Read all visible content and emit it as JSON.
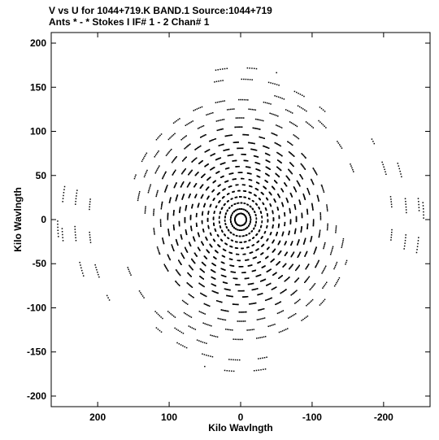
{
  "header": {
    "line1": "V vs U for 1044+719.K BAND.1   Source:1044+719",
    "line2": "Ants * - *     Stokes I  IF# 1 - 2  Chan# 1"
  },
  "chart_data": {
    "type": "scatter",
    "title": "V vs U for 1044+719.K BAND.1   Source:1044+719",
    "subtitle": "Ants * - *     Stokes I  IF# 1 - 2  Chan# 1",
    "xlabel": "Kilo Wavlngth",
    "ylabel": "Kilo Wavlngth",
    "xlim": [
      265,
      -265
    ],
    "ylim": [
      -212,
      212
    ],
    "x_reversed": true,
    "xticks": [
      200,
      100,
      0,
      -100,
      -200
    ],
    "xtick_labels": [
      "200",
      "100",
      "0",
      "-100",
      "-200"
    ],
    "yticks": [
      200,
      150,
      100,
      50,
      0,
      -50,
      -100,
      -150,
      -200
    ],
    "ytick_labels": [
      "200",
      "150",
      "100",
      "50",
      "0",
      "-50",
      "-100",
      "-150",
      "-200"
    ],
    "grid": false,
    "legend": "none",
    "marker_color": "#000000",
    "symmetric_points": true,
    "tracks": [
      {
        "radius": 8,
        "start_deg": 0,
        "sweep_deg": 360
      },
      {
        "radius": 14,
        "start_deg": 0,
        "sweep_deg": 360
      },
      {
        "radius": 22,
        "start_deg": 0,
        "sweep_deg": 360
      },
      {
        "radius": 30,
        "start_deg": 0,
        "sweep_deg": 360
      },
      {
        "radius": 38,
        "start_deg": 0,
        "sweep_deg": 360
      },
      {
        "radius": 46,
        "start_deg": 0,
        "sweep_deg": 360
      },
      {
        "radius": 54,
        "start_deg": 0,
        "sweep_deg": 360
      },
      {
        "radius": 62,
        "start_deg": 0,
        "sweep_deg": 360
      },
      {
        "radius": 70,
        "start_deg": 0,
        "sweep_deg": 360
      },
      {
        "radius": 78,
        "start_deg": 0,
        "sweep_deg": 360
      },
      {
        "radius": 86,
        "start_deg": 0,
        "sweep_deg": 360
      },
      {
        "radius": 94,
        "start_deg": 0,
        "sweep_deg": 360
      },
      {
        "radius": 102,
        "start_deg": 0,
        "sweep_deg": 360
      },
      {
        "radius": 112,
        "start_deg": 10,
        "sweep_deg": 340
      },
      {
        "radius": 122,
        "start_deg": 20,
        "sweep_deg": 320
      },
      {
        "radius": 134,
        "start_deg": 0,
        "sweep_deg": 130
      },
      {
        "radius": 146,
        "start_deg": 10,
        "sweep_deg": 120
      },
      {
        "radius": 158,
        "start_deg": 20,
        "sweep_deg": 110
      },
      {
        "radius": 170,
        "start_deg": 100,
        "sweep_deg": 60
      },
      {
        "radius": 185,
        "start_deg": 75,
        "sweep_deg": 55
      },
      {
        "radius": 200,
        "start_deg": 80,
        "sweep_deg": 25
      },
      {
        "radius": 212,
        "start_deg": 150,
        "sweep_deg": 40
      },
      {
        "radius": 232,
        "start_deg": 155,
        "sweep_deg": 35
      },
      {
        "radius": 250,
        "start_deg": 170,
        "sweep_deg": 20
      },
      {
        "radius": 256,
        "start_deg": 175,
        "sweep_deg": 10
      }
    ],
    "track_y_scale": 0.86,
    "points_per_deg": 1.1,
    "scan_len_deg": 5,
    "scan_gap_deg": 7
  }
}
